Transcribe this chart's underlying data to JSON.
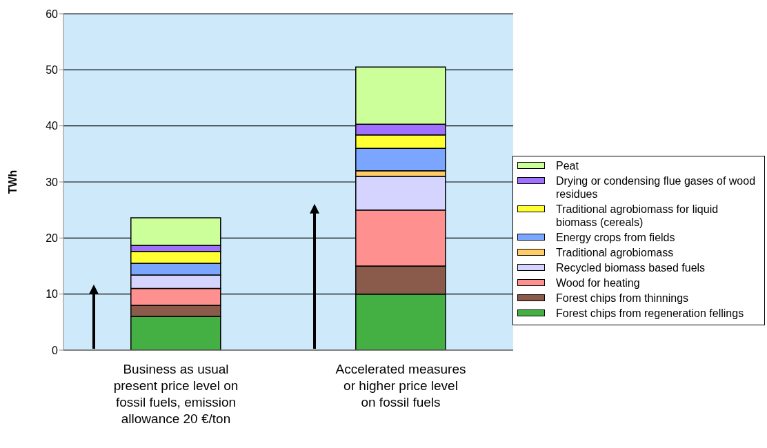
{
  "chart_data": {
    "type": "bar",
    "stacked": true,
    "ylabel": "TWh",
    "categories": [
      "Business as usual present price level on fossil fuels, emission allowance 20 €/ton",
      "Accelerated measures or higher price level on fossil fuels"
    ],
    "series": [
      {
        "name": "Forest chips from regeneration fellings",
        "color": "#44b044",
        "values": [
          6,
          10
        ]
      },
      {
        "name": "Forest chips from thinnings",
        "color": "#8a5a4a",
        "values": [
          2,
          5
        ]
      },
      {
        "name": "Wood for heating",
        "color": "#ff9090",
        "values": [
          3,
          10
        ]
      },
      {
        "name": "Recycled biomass based fuels",
        "color": "#d4d4ff",
        "values": [
          2.4,
          6
        ]
      },
      {
        "name": "Traditional agrobiomass",
        "color": "#ffcc66",
        "values": [
          0,
          1
        ]
      },
      {
        "name": "Energy crops from fields",
        "color": "#7aa6ff",
        "values": [
          2.1,
          4
        ]
      },
      {
        "name": "Traditional agrobiomass for liquid biomass (cereals)",
        "color": "#ffff33",
        "values": [
          2.1,
          2.4
        ]
      },
      {
        "name": "Drying or condensing flue gases of wood residues",
        "color": "#a070ff",
        "values": [
          1.1,
          1.9
        ]
      },
      {
        "name": "Peat",
        "color": "#ccff99",
        "values": [
          4.9,
          10.2
        ]
      }
    ],
    "ylim": [
      0,
      60
    ],
    "yticks": [
      0,
      10,
      20,
      30,
      40,
      50,
      60
    ],
    "grid": "y",
    "legend": "right"
  }
}
